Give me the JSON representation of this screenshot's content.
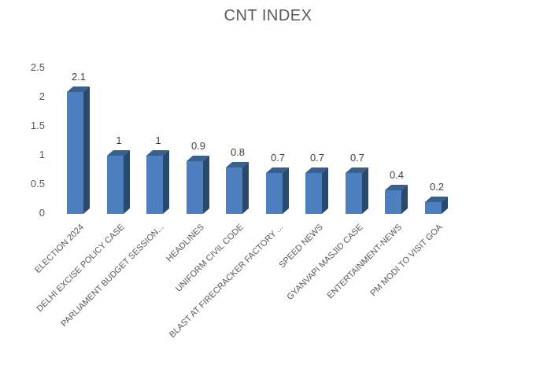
{
  "chart_data": {
    "type": "bar",
    "style": "3d-bar",
    "title": "CNT INDEX",
    "xlabel": "",
    "ylabel": "",
    "categories": [
      "ELECTION 2024",
      "DELHI EXCISE POLICY CASE",
      "PARLIAMENT BUDGET SESSION...",
      "HEADLINES",
      "UNIFORM CIVIL CODE",
      "BLAST AT FIRECRACKER FACTORY ...",
      "SPEED NEWS",
      "GYANVAPI MASJID CASE",
      "ENTERTAINMENT-NEWS",
      "PM MODI TO VISIT GOA"
    ],
    "values": [
      2.1,
      1,
      1,
      0.9,
      0.8,
      0.7,
      0.7,
      0.7,
      0.4,
      0.2
    ],
    "labels": [
      "2.1",
      "1",
      "1",
      "0.9",
      "0.8",
      "0.7",
      "0.7",
      "0.7",
      "0.4",
      "0.2"
    ],
    "yticks": [
      "0",
      "0.5",
      "1",
      "1.5",
      "2",
      "2.5"
    ],
    "ylim": [
      0,
      2.5
    ],
    "grid": false,
    "legend": "none",
    "colors": {
      "bar_front": "#4d7ebd",
      "bar_top": "#38618f",
      "bar_side": "#294a6d",
      "title_text": "#595959",
      "axis_text": "#595959",
      "value_label_text": "#404040",
      "background": "#ffffff"
    }
  }
}
